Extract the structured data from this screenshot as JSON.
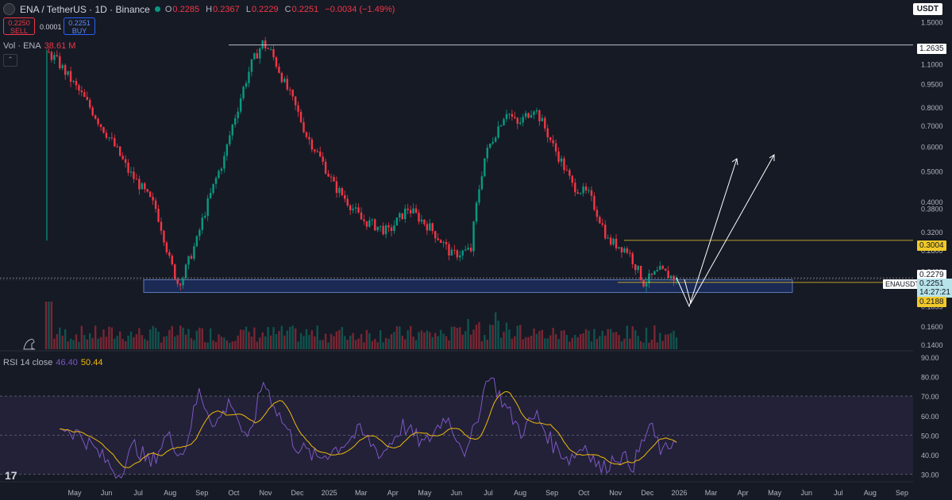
{
  "header": {
    "symbol": "ENA / TetherUS · 1D · Binance",
    "open_label": "O",
    "open": "0.2285",
    "high_label": "H",
    "high": "0.2367",
    "low_label": "L",
    "low": "0.2229",
    "close_label": "C",
    "close": "0.2251",
    "change": "−0.0034 (−1.49%)"
  },
  "trade": {
    "sell_price": "0.2250",
    "sell_label": "SELL",
    "spread": "0.0001",
    "buy_price": "0.2251",
    "buy_label": "BUY"
  },
  "volume": {
    "label": "Vol · ENA",
    "value": "38.61 M"
  },
  "rsi": {
    "label": "RSI 14 close",
    "value1": "46.40",
    "value2": "50.44"
  },
  "currency": "USDT",
  "tags": {
    "level_high": "1.2635",
    "level_mid": "0.3004",
    "level_prev": "0.2279",
    "symbol_tag": "ENAUSDT",
    "last_price": "0.2251",
    "countdown": "14:27:21",
    "level_low": "0.2188"
  },
  "colors": {
    "up": "#089981",
    "down": "#f23645",
    "rsi": "#7e57c2",
    "rsi_ma": "#f0b90b",
    "level": "#f0c929",
    "zone": "#2962ff"
  },
  "chart_data": {
    "type": "candlestick",
    "price_axis": {
      "scale": "log",
      "ticks": [
        "1.5000",
        "1.1000",
        "0.9500",
        "0.8000",
        "0.7000",
        "0.6000",
        "0.5000",
        "0.4000",
        "0.3800",
        "0.3200",
        "0.2800",
        "0.2400",
        "0.1855",
        "0.1600",
        "0.1400"
      ]
    },
    "time_axis": [
      "May",
      "Jun",
      "Jul",
      "Aug",
      "Sep",
      "Oct",
      "Nov",
      "Dec",
      "2025",
      "Mar",
      "Apr",
      "May",
      "Jun",
      "Jul",
      "Aug",
      "Sep",
      "Oct",
      "Nov",
      "Dec",
      "2026",
      "Mar",
      "Apr",
      "May",
      "Jun",
      "Jul",
      "Aug",
      "Sep"
    ],
    "rsi_axis": [
      "90.00",
      "80.00",
      "70.00",
      "60.00",
      "50.00",
      "40.00",
      "30.00"
    ],
    "price_path": [
      [
        0,
        1.2
      ],
      [
        3,
        1.15
      ],
      [
        10,
        0.95
      ],
      [
        20,
        0.7
      ],
      [
        30,
        0.5
      ],
      [
        40,
        0.38
      ],
      [
        45,
        0.26
      ],
      [
        48,
        0.22
      ],
      [
        50,
        0.23
      ],
      [
        55,
        0.3
      ],
      [
        60,
        0.42
      ],
      [
        65,
        0.55
      ],
      [
        70,
        0.8
      ],
      [
        75,
        1.1
      ],
      [
        79,
        1.28
      ],
      [
        82,
        1.2
      ],
      [
        87,
        0.95
      ],
      [
        95,
        0.65
      ],
      [
        105,
        0.45
      ],
      [
        115,
        0.35
      ],
      [
        125,
        0.32
      ],
      [
        132,
        0.38
      ],
      [
        140,
        0.33
      ],
      [
        148,
        0.27
      ],
      [
        155,
        0.28
      ],
      [
        160,
        0.55
      ],
      [
        168,
        0.78
      ],
      [
        172,
        0.7
      ],
      [
        178,
        0.8
      ],
      [
        185,
        0.6
      ],
      [
        192,
        0.45
      ],
      [
        198,
        0.42
      ],
      [
        205,
        0.3
      ],
      [
        212,
        0.28
      ],
      [
        218,
        0.22
      ],
      [
        224,
        0.24
      ],
      [
        230,
        0.2251
      ]
    ],
    "rsi_path": [
      [
        0,
        55
      ],
      [
        8,
        50
      ],
      [
        15,
        40
      ],
      [
        22,
        30
      ],
      [
        28,
        45
      ],
      [
        34,
        35
      ],
      [
        40,
        50
      ],
      [
        46,
        40
      ],
      [
        52,
        72
      ],
      [
        58,
        55
      ],
      [
        64,
        68
      ],
      [
        70,
        45
      ],
      [
        76,
        78
      ],
      [
        82,
        60
      ],
      [
        88,
        45
      ],
      [
        96,
        38
      ],
      [
        104,
        44
      ],
      [
        112,
        52
      ],
      [
        120,
        40
      ],
      [
        128,
        55
      ],
      [
        136,
        45
      ],
      [
        144,
        60
      ],
      [
        152,
        40
      ],
      [
        160,
        82
      ],
      [
        166,
        65
      ],
      [
        172,
        52
      ],
      [
        178,
        60
      ],
      [
        184,
        45
      ],
      [
        190,
        38
      ],
      [
        196,
        45
      ],
      [
        202,
        32
      ],
      [
        208,
        40
      ],
      [
        214,
        35
      ],
      [
        220,
        55
      ],
      [
        225,
        40
      ],
      [
        230,
        50
      ]
    ],
    "levels": [
      1.2635,
      0.3004,
      0.2279,
      0.2188
    ],
    "demand_zone": [
      0.205,
      0.225
    ]
  }
}
